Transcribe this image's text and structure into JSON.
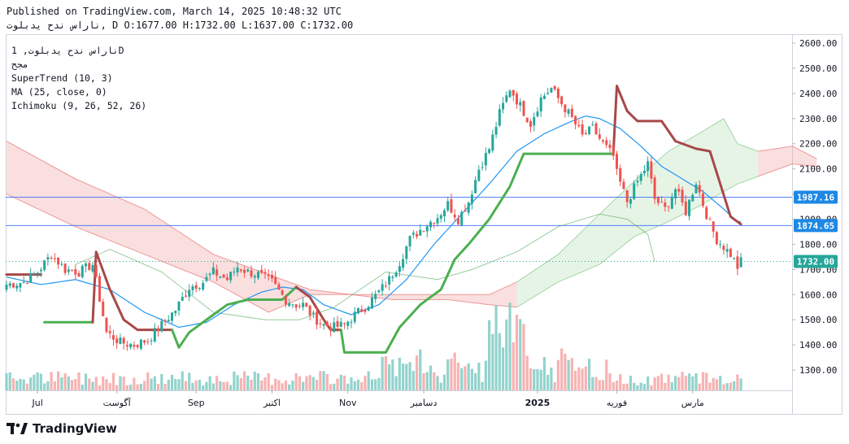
{
  "header": {
    "published": "Published on TradingView.com, March 14, 2025 10:48:32 UTC",
    "ohlc_line": "ناراس ندح يدبلوت, D O:1677.00 H:1732.00 L:1637.00 C:1732.00"
  },
  "legend": {
    "symbol": "ناراس ندح يدبلوت, 1D",
    "symbol_sub": "مجح",
    "indicators": [
      "SuperTrend (10, 3)",
      "MA (25, close, 0)",
      "Ichimoku (9, 26, 52, 26)"
    ]
  },
  "brand": {
    "name": "TradingView",
    "logo_icon": "tradingview-logo-icon"
  },
  "colors": {
    "up": "#26a69a",
    "down": "#ef5350",
    "supertrend_up": "#4caf50",
    "supertrend_down": "#a84848",
    "ma": "#2196f3",
    "hline": "#2962ff",
    "cloud_bull": "#a5d6a7",
    "cloud_bear": "#ef9a9a"
  },
  "chart_data": {
    "type": "candlestick",
    "y_ticks": [
      "2600.00",
      "2500.00",
      "2400.00",
      "2300.00",
      "2200.00",
      "2100.00",
      "2000.00",
      "1900.00",
      "1800.00",
      "1700.00",
      "1600.00",
      "1500.00",
      "1400.00",
      "1300.00"
    ],
    "ylim": [
      1215,
      2626
    ],
    "x_labels": [
      {
        "label": "Jul",
        "index": 9
      },
      {
        "label": "آگوست",
        "index": 32
      },
      {
        "label": "Sep",
        "index": 55
      },
      {
        "label": "اکتبر",
        "index": 77
      },
      {
        "label": "Nov",
        "index": 99
      },
      {
        "label": "دسامبر",
        "index": 121
      },
      {
        "label": "2025",
        "index": 154
      },
      {
        "label": "فوریه",
        "index": 177
      },
      {
        "label": "مارس",
        "index": 199
      }
    ],
    "price_labels": [
      {
        "value": 1987.16,
        "text": "1987.16",
        "style": "line"
      },
      {
        "value": 1874.65,
        "text": "1874.65",
        "style": "line"
      },
      {
        "value": 1732.0,
        "text": "1732.00",
        "style": "last"
      }
    ],
    "close_anchors": [
      [
        0,
        1640
      ],
      [
        5,
        1650
      ],
      [
        9,
        1690
      ],
      [
        13,
        1760
      ],
      [
        17,
        1700
      ],
      [
        21,
        1690
      ],
      [
        25,
        1720
      ],
      [
        29,
        1450
      ],
      [
        33,
        1410
      ],
      [
        37,
        1400
      ],
      [
        41,
        1420
      ],
      [
        45,
        1480
      ],
      [
        49,
        1540
      ],
      [
        53,
        1630
      ],
      [
        57,
        1650
      ],
      [
        60,
        1690
      ],
      [
        64,
        1660
      ],
      [
        67,
        1710
      ],
      [
        70,
        1690
      ],
      [
        73,
        1680
      ],
      [
        77,
        1650
      ],
      [
        81,
        1580
      ],
      [
        84,
        1560
      ],
      [
        86,
        1560
      ],
      [
        89,
        1510
      ],
      [
        92,
        1480
      ],
      [
        95,
        1470
      ],
      [
        98,
        1480
      ],
      [
        101,
        1520
      ],
      [
        104,
        1550
      ],
      [
        108,
        1610
      ],
      [
        111,
        1660
      ],
      [
        114,
        1730
      ],
      [
        117,
        1820
      ],
      [
        121,
        1870
      ],
      [
        125,
        1910
      ],
      [
        128,
        1960
      ],
      [
        131,
        1900
      ],
      [
        134,
        1970
      ],
      [
        137,
        2100
      ],
      [
        140,
        2180
      ],
      [
        143,
        2320
      ],
      [
        146,
        2420
      ],
      [
        149,
        2350
      ],
      [
        152,
        2280
      ],
      [
        155,
        2380
      ],
      [
        158,
        2420
      ],
      [
        161,
        2360
      ],
      [
        164,
        2300
      ],
      [
        167,
        2230
      ],
      [
        170,
        2260
      ],
      [
        173,
        2200
      ],
      [
        176,
        2150
      ],
      [
        177,
        2080
      ],
      [
        180,
        1970
      ],
      [
        183,
        2050
      ],
      [
        186,
        2120
      ],
      [
        188,
        1980
      ],
      [
        191,
        1940
      ],
      [
        194,
        2020
      ],
      [
        197,
        1930
      ],
      [
        200,
        2050
      ],
      [
        202,
        1960
      ],
      [
        204,
        1880
      ],
      [
        206,
        1820
      ],
      [
        208,
        1790
      ],
      [
        210,
        1760
      ],
      [
        212,
        1710
      ],
      [
        213,
        1732
      ]
    ],
    "ma25_anchors": [
      [
        0,
        1670
      ],
      [
        10,
        1640
      ],
      [
        20,
        1660
      ],
      [
        30,
        1620
      ],
      [
        40,
        1530
      ],
      [
        50,
        1470
      ],
      [
        58,
        1490
      ],
      [
        66,
        1560
      ],
      [
        74,
        1610
      ],
      [
        80,
        1630
      ],
      [
        86,
        1620
      ],
      [
        92,
        1560
      ],
      [
        100,
        1520
      ],
      [
        108,
        1560
      ],
      [
        116,
        1660
      ],
      [
        124,
        1800
      ],
      [
        132,
        1920
      ],
      [
        140,
        2040
      ],
      [
        148,
        2170
      ],
      [
        156,
        2240
      ],
      [
        164,
        2290
      ],
      [
        168,
        2310
      ],
      [
        172,
        2300
      ],
      [
        178,
        2260
      ],
      [
        184,
        2190
      ],
      [
        190,
        2110
      ],
      [
        196,
        2060
      ],
      [
        202,
        2010
      ],
      [
        208,
        1940
      ],
      [
        212,
        1890
      ]
    ],
    "supertrend_segments": [
      {
        "trend": "down",
        "points": [
          [
            0,
            1680
          ],
          [
            10,
            1680
          ]
        ]
      },
      {
        "trend": "up",
        "points": [
          [
            11,
            1490
          ],
          [
            25,
            1490
          ]
        ]
      },
      {
        "trend": "down",
        "points": [
          [
            25,
            1490
          ],
          [
            26,
            1770
          ],
          [
            30,
            1620
          ],
          [
            34,
            1500
          ],
          [
            38,
            1460
          ],
          [
            48,
            1460
          ]
        ]
      },
      {
        "trend": "up",
        "points": [
          [
            48,
            1460
          ],
          [
            50,
            1390
          ],
          [
            53,
            1450
          ],
          [
            56,
            1480
          ],
          [
            60,
            1520
          ],
          [
            64,
            1560
          ],
          [
            70,
            1580
          ],
          [
            80,
            1580
          ],
          [
            84,
            1630
          ]
        ]
      },
      {
        "trend": "down",
        "points": [
          [
            84,
            1630
          ],
          [
            88,
            1590
          ],
          [
            92,
            1500
          ],
          [
            94,
            1460
          ],
          [
            97,
            1460
          ]
        ]
      },
      {
        "trend": "up",
        "points": [
          [
            97,
            1460
          ],
          [
            98,
            1370
          ],
          [
            110,
            1370
          ],
          [
            114,
            1470
          ],
          [
            120,
            1560
          ],
          [
            126,
            1620
          ],
          [
            130,
            1740
          ],
          [
            134,
            1800
          ],
          [
            140,
            1900
          ],
          [
            146,
            2030
          ],
          [
            150,
            2160
          ],
          [
            170,
            2160
          ],
          [
            176,
            2160
          ]
        ]
      },
      {
        "trend": "down",
        "points": [
          [
            176,
            2160
          ],
          [
            177,
            2430
          ],
          [
            180,
            2330
          ],
          [
            183,
            2290
          ],
          [
            190,
            2290
          ],
          [
            194,
            2210
          ],
          [
            200,
            2180
          ],
          [
            204,
            2170
          ],
          [
            207,
            2040
          ],
          [
            210,
            1910
          ],
          [
            213,
            1880
          ]
        ]
      }
    ],
    "cloud_spans": [
      {
        "bull": false,
        "a": [
          [
            0,
            2210
          ],
          [
            20,
            2060
          ],
          [
            40,
            1940
          ],
          [
            60,
            1760
          ],
          [
            76,
            1680
          ],
          [
            88,
            1620
          ],
          [
            100,
            1600
          ],
          [
            112,
            1580
          ],
          [
            128,
            1580
          ],
          [
            140,
            1560
          ],
          [
            148,
            1550
          ]
        ],
        "b": [
          [
            0,
            2000
          ],
          [
            20,
            1870
          ],
          [
            40,
            1760
          ],
          [
            60,
            1650
          ],
          [
            76,
            1530
          ],
          [
            88,
            1600
          ],
          [
            100,
            1600
          ],
          [
            112,
            1600
          ],
          [
            128,
            1600
          ],
          [
            140,
            1600
          ],
          [
            148,
            1650
          ]
        ]
      },
      {
        "bull": true,
        "a": [
          [
            148,
            1650
          ],
          [
            160,
            1760
          ],
          [
            172,
            1920
          ],
          [
            182,
            2050
          ],
          [
            192,
            2170
          ],
          [
            202,
            2250
          ],
          [
            208,
            2300
          ],
          [
            212,
            2200
          ],
          [
            218,
            2170
          ]
        ],
        "b": [
          [
            148,
            1550
          ],
          [
            160,
            1650
          ],
          [
            172,
            1720
          ],
          [
            182,
            1830
          ],
          [
            192,
            1890
          ],
          [
            202,
            1960
          ],
          [
            208,
            2010
          ],
          [
            212,
            2040
          ],
          [
            218,
            2070
          ]
        ]
      },
      {
        "bull": false,
        "a": [
          [
            218,
            2170
          ],
          [
            228,
            2190
          ],
          [
            235,
            2140
          ]
        ],
        "b": [
          [
            218,
            2070
          ],
          [
            228,
            2120
          ],
          [
            235,
            2110
          ]
        ]
      }
    ],
    "chikou_anchors": [
      [
        20,
        1720
      ],
      [
        30,
        1780
      ],
      [
        45,
        1690
      ],
      [
        60,
        1530
      ],
      [
        75,
        1500
      ],
      [
        85,
        1500
      ],
      [
        95,
        1550
      ],
      [
        110,
        1690
      ],
      [
        125,
        1660
      ],
      [
        135,
        1700
      ],
      [
        148,
        1770
      ],
      [
        160,
        1870
      ],
      [
        172,
        1920
      ],
      [
        180,
        1900
      ],
      [
        186,
        1840
      ],
      [
        188,
        1732
      ]
    ]
  }
}
